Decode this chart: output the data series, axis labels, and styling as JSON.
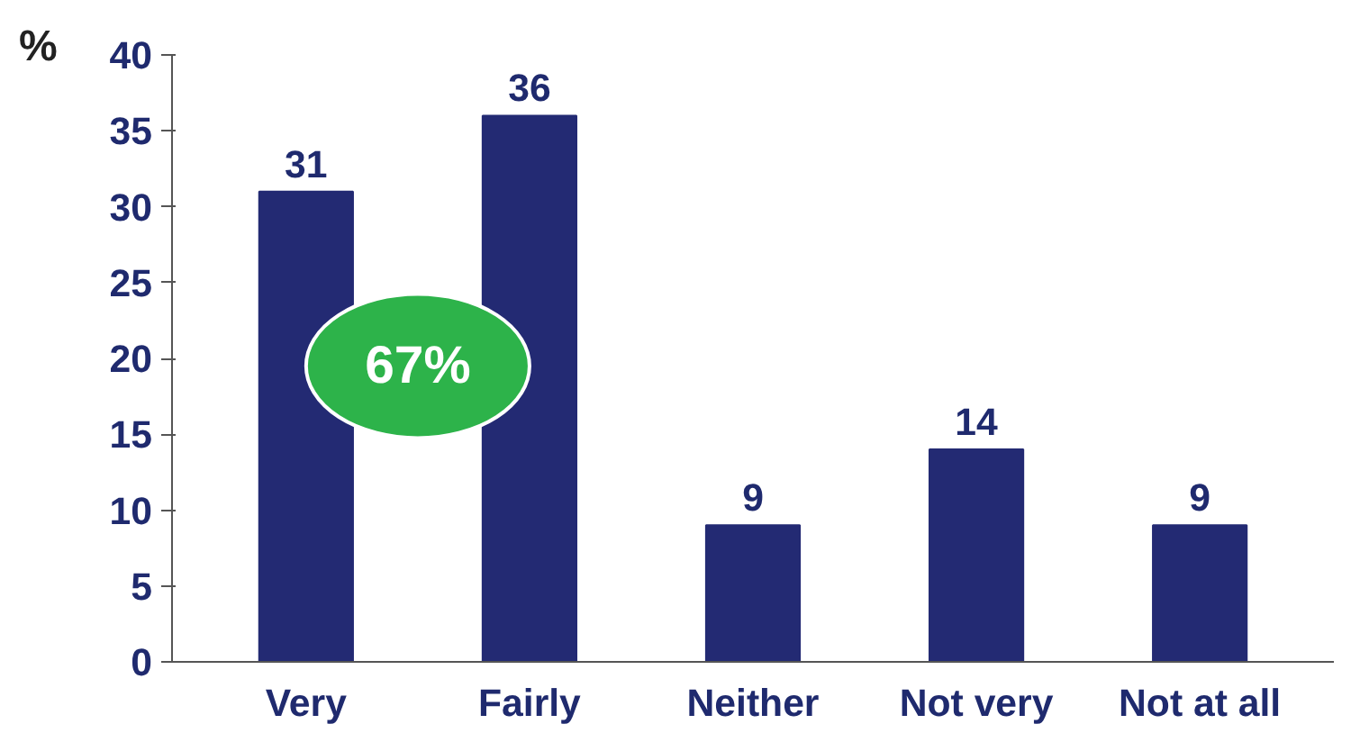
{
  "chart_data": {
    "type": "bar",
    "ylabel": "%",
    "categories": [
      "Very",
      "Fairly",
      "Neither",
      "Not very",
      "Not at all"
    ],
    "values": [
      31,
      36,
      9,
      14,
      9
    ],
    "color": "#232a73",
    "ylim": [
      0,
      40
    ],
    "yticks": [
      0,
      5,
      10,
      15,
      20,
      25,
      30,
      35,
      40
    ],
    "grid": false,
    "data_labels": true,
    "annotations": [
      "67%"
    ]
  }
}
